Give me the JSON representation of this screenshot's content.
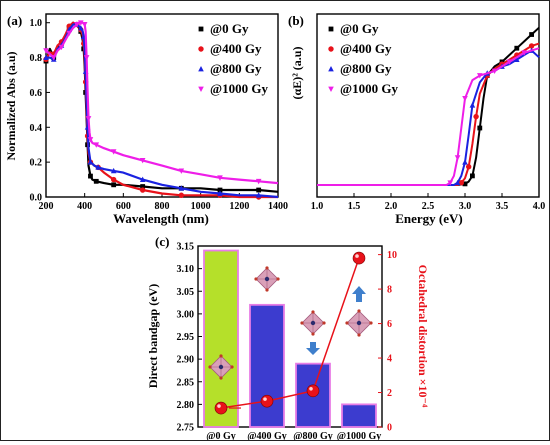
{
  "chart_data": [
    {
      "panel": "(a)",
      "type": "line",
      "xlabel": "Wavelength (nm)",
      "ylabel": "Normalized Abs (a.u)",
      "xlim": [
        200,
        1400
      ],
      "ylim": [
        0.0,
        1.05
      ],
      "xticks": [
        "200",
        "400",
        "600",
        "800",
        "1000",
        "1200",
        "1400"
      ],
      "yticks": [
        "0.0",
        "0.2",
        "0.4",
        "0.6",
        "0.8",
        "1.0"
      ],
      "legend_position": "top-right",
      "series": [
        {
          "name": "@0 Gy",
          "color": "#000000",
          "x": [
            200,
            220,
            240,
            260,
            280,
            300,
            320,
            340,
            360,
            370,
            380,
            390,
            395,
            400,
            405,
            410,
            415,
            420,
            430,
            440,
            460,
            500,
            550,
            600,
            700,
            800,
            900,
            1000,
            1100,
            1200,
            1300,
            1400
          ],
          "y": [
            0.78,
            0.85,
            0.8,
            0.86,
            0.88,
            0.92,
            0.97,
            1.0,
            0.99,
            0.97,
            0.95,
            0.9,
            0.85,
            0.75,
            0.6,
            0.45,
            0.3,
            0.18,
            0.12,
            0.1,
            0.09,
            0.08,
            0.07,
            0.07,
            0.06,
            0.05,
            0.05,
            0.05,
            0.04,
            0.04,
            0.04,
            0.03
          ]
        },
        {
          "name": "@400 Gy",
          "color": "#e8121a",
          "x": [
            200,
            220,
            240,
            260,
            280,
            300,
            320,
            340,
            360,
            370,
            380,
            390,
            395,
            400,
            405,
            410,
            415,
            420,
            430,
            450,
            470,
            500,
            550,
            600,
            700,
            800,
            900,
            1000,
            1100,
            1200,
            1300,
            1400
          ],
          "y": [
            0.79,
            0.83,
            0.82,
            0.87,
            0.89,
            0.93,
            0.98,
            1.0,
            0.99,
            0.98,
            0.96,
            0.93,
            0.88,
            0.8,
            0.66,
            0.5,
            0.35,
            0.25,
            0.2,
            0.18,
            0.17,
            0.14,
            0.1,
            0.07,
            0.04,
            0.02,
            0.01,
            0.01,
            0.01,
            0.0,
            0.0,
            0.0
          ]
        },
        {
          "name": "@800 Gy",
          "color": "#1a22e0",
          "x": [
            200,
            220,
            240,
            260,
            280,
            300,
            320,
            340,
            360,
            370,
            380,
            390,
            395,
            400,
            405,
            410,
            415,
            420,
            430,
            450,
            470,
            500,
            550,
            600,
            700,
            800,
            900,
            1000,
            1100,
            1200,
            1300,
            1400
          ],
          "y": [
            0.8,
            0.8,
            0.79,
            0.85,
            0.87,
            0.91,
            0.96,
            0.99,
            0.99,
            0.98,
            0.97,
            0.95,
            0.92,
            0.84,
            0.72,
            0.55,
            0.4,
            0.28,
            0.2,
            0.18,
            0.17,
            0.16,
            0.15,
            0.14,
            0.1,
            0.07,
            0.05,
            0.03,
            0.02,
            0.01,
            0.01,
            0.0
          ]
        },
        {
          "name": "@1000 Gy",
          "color": "#ee1ee8",
          "x": [
            200,
            220,
            240,
            260,
            280,
            300,
            320,
            340,
            360,
            370,
            380,
            390,
            400,
            405,
            410,
            415,
            420,
            425,
            430,
            440,
            460,
            500,
            550,
            600,
            700,
            800,
            900,
            1000,
            1100,
            1200,
            1300,
            1400
          ],
          "y": [
            0.84,
            0.82,
            0.8,
            0.84,
            0.86,
            0.9,
            0.94,
            0.97,
            0.99,
            1.0,
            1.0,
            1.0,
            0.99,
            0.95,
            0.8,
            0.6,
            0.45,
            0.37,
            0.33,
            0.31,
            0.3,
            0.28,
            0.26,
            0.24,
            0.21,
            0.18,
            0.15,
            0.13,
            0.11,
            0.1,
            0.09,
            0.08
          ]
        }
      ]
    },
    {
      "panel": "(b)",
      "type": "line",
      "xlabel": "Energy (eV)",
      "ylabel": "(αE)² (a.u)",
      "xlim": [
        1.0,
        4.0
      ],
      "xticks": [
        "1.0",
        "1.5",
        "2.0",
        "2.5",
        "3.0",
        "3.5",
        "4.0"
      ],
      "legend_position": "top-right",
      "series": [
        {
          "name": "@0 Gy",
          "color": "#000000",
          "x": [
            1.0,
            1.5,
            2.0,
            2.5,
            2.9,
            3.0,
            3.05,
            3.1,
            3.15,
            3.2,
            3.25,
            3.3,
            3.4,
            3.5,
            3.6,
            3.7,
            3.8,
            3.9,
            4.0
          ],
          "y": [
            0,
            0,
            0,
            0,
            0,
            0.5,
            1.5,
            4,
            12,
            25,
            38,
            48,
            52,
            54,
            57,
            60,
            63,
            66,
            69
          ]
        },
        {
          "name": "@400 Gy",
          "color": "#e8121a",
          "x": [
            1.0,
            1.5,
            2.0,
            2.5,
            2.9,
            2.95,
            3.0,
            3.05,
            3.1,
            3.15,
            3.2,
            3.3,
            3.4,
            3.5,
            3.6,
            3.7,
            3.8,
            3.9,
            4.0
          ],
          "y": [
            0,
            0,
            0,
            0,
            0,
            1,
            3,
            8,
            18,
            30,
            40,
            48,
            51,
            53,
            55,
            57,
            59,
            61,
            62
          ]
        },
        {
          "name": "@800 Gy",
          "color": "#1a22e0",
          "x": [
            1.0,
            1.5,
            2.0,
            2.5,
            2.85,
            2.9,
            2.95,
            3.0,
            3.05,
            3.1,
            3.2,
            3.3,
            3.4,
            3.5,
            3.6,
            3.7,
            3.8,
            3.9,
            4.0
          ],
          "y": [
            0,
            0,
            0,
            0,
            0,
            1,
            4,
            10,
            22,
            35,
            45,
            49,
            50,
            52,
            53,
            55,
            57,
            59,
            56
          ]
        },
        {
          "name": "@1000 Gy",
          "color": "#ee1ee8",
          "x": [
            1.0,
            1.5,
            2.0,
            2.5,
            2.75,
            2.8,
            2.85,
            2.9,
            2.95,
            3.0,
            3.1,
            3.2,
            3.3,
            3.4,
            3.5,
            3.6,
            3.7,
            3.8,
            4.0
          ],
          "y": [
            0,
            0,
            0,
            0,
            0,
            1,
            4,
            12,
            25,
            38,
            46,
            48,
            49,
            50,
            52,
            54,
            56,
            58,
            60
          ]
        }
      ]
    },
    {
      "panel": "(c)",
      "type": "bar",
      "categories": [
        "@0 Gy",
        "@400 Gy",
        "@800 Gy",
        "@1000 Gy"
      ],
      "ylabel": "Direct bandgap (eV)",
      "ylim": [
        2.75,
        3.15
      ],
      "yticks": [
        "2.75",
        "2.80",
        "2.85",
        "2.90",
        "2.95",
        "3.00",
        "3.05",
        "3.10",
        "3.15"
      ],
      "y2label": "Octahedral distortion ×10⁻⁴",
      "y2lim": [
        0,
        10.5
      ],
      "y2ticks": [
        "0",
        "2",
        "4",
        "6",
        "8",
        "10"
      ],
      "bandgap": [
        3.14,
        3.02,
        2.89,
        2.8
      ],
      "distortion": [
        1.1,
        1.5,
        2.1,
        9.8
      ],
      "colors": {
        "bar_first": "#b5e02a",
        "bar_other": "#3c3ccf",
        "bar_edge": "#e87de6",
        "line": "#e8121a",
        "arrow": "#3f7fcc"
      }
    }
  ],
  "panel_labels": [
    "(a)",
    "(b)",
    "(c)"
  ]
}
